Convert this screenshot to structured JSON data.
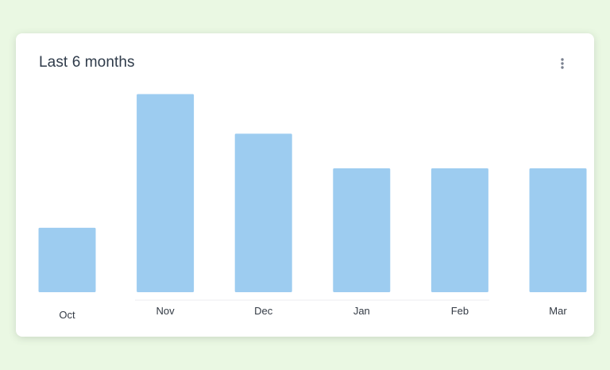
{
  "card": {
    "title": "Last 6 months"
  },
  "menu": {
    "icon": "more-vertical-icon"
  },
  "chart_data": {
    "type": "bar",
    "categories": [
      "Oct",
      "Nov",
      "Dec",
      "Jan",
      "Feb",
      "Mar"
    ],
    "values": [
      1.3,
      4,
      3.2,
      2.5,
      2.5,
      2.5
    ],
    "ylim": [
      0,
      4.2
    ],
    "grid": false,
    "legend": "none",
    "bar_color": "#9dccf0"
  }
}
